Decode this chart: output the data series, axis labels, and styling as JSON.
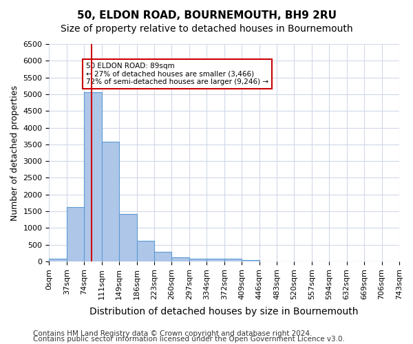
{
  "title": "50, ELDON ROAD, BOURNEMOUTH, BH9 2RU",
  "subtitle": "Size of property relative to detached houses in Bournemouth",
  "xlabel": "Distribution of detached houses by size in Bournemouth",
  "ylabel": "Number of detached properties",
  "footer_line1": "Contains HM Land Registry data © Crown copyright and database right 2024.",
  "footer_line2": "Contains public sector information licensed under the Open Government Licence v3.0.",
  "bin_labels": [
    "0sqm",
    "37sqm",
    "74sqm",
    "111sqm",
    "149sqm",
    "186sqm",
    "223sqm",
    "260sqm",
    "297sqm",
    "334sqm",
    "372sqm",
    "409sqm",
    "446sqm",
    "483sqm",
    "520sqm",
    "557sqm",
    "594sqm",
    "632sqm",
    "669sqm",
    "706sqm",
    "743sqm"
  ],
  "bar_values": [
    75,
    1630,
    5060,
    3570,
    1420,
    620,
    290,
    130,
    75,
    75,
    75,
    50,
    0,
    0,
    0,
    0,
    0,
    0,
    0,
    0
  ],
  "bar_color": "#aec6e8",
  "bar_edgecolor": "#5b9bd5",
  "grid_color": "#d0d8e8",
  "ylim": [
    0,
    6500
  ],
  "yticks": [
    0,
    500,
    1000,
    1500,
    2000,
    2500,
    3000,
    3500,
    4000,
    4500,
    5000,
    5500,
    6000,
    6500
  ],
  "property_size": 89,
  "property_bin_index": 2,
  "redline_color": "#cc0000",
  "annotation_text": "50 ELDON ROAD: 89sqm\n← 27% of detached houses are smaller (3,466)\n72% of semi-detached houses are larger (9,246) →",
  "annotation_box_color": "#ffffff",
  "annotation_border_color": "#cc0000",
  "background_color": "#ffffff",
  "title_fontsize": 11,
  "subtitle_fontsize": 10,
  "tick_fontsize": 8,
  "ylabel_fontsize": 9,
  "xlabel_fontsize": 10,
  "footer_fontsize": 7.5
}
